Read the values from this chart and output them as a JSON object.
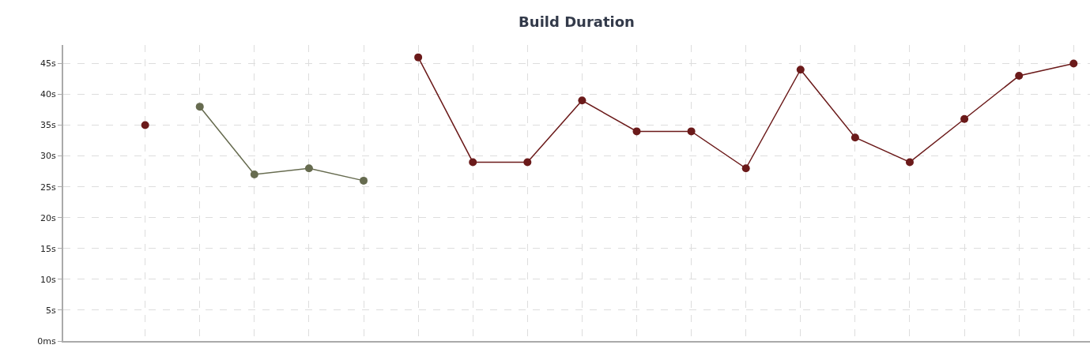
{
  "chart_data": {
    "type": "line",
    "title": "Build Duration",
    "categories": [
      null,
      null,
      null,
      null,
      null,
      null,
      null,
      null,
      null,
      null,
      null,
      null,
      null,
      null,
      null,
      null,
      null,
      null
    ],
    "series": [
      {
        "color": "#6b1a1a",
        "values": [
          null,
          null,
          null,
          null,
          null,
          46,
          29,
          29,
          39,
          34,
          34,
          28,
          44,
          33,
          29,
          36,
          43,
          45
        ]
      },
      {
        "color": "#666b4f",
        "values": [
          null,
          38,
          27,
          28,
          26,
          null,
          null,
          null,
          null,
          null,
          null,
          null,
          null,
          null,
          null,
          null,
          null,
          null
        ]
      },
      {
        "type": "scatter",
        "color": "#6b1a1a",
        "values": [
          35,
          null,
          null,
          null,
          null,
          null,
          null,
          null,
          null,
          null,
          null,
          null,
          null,
          null,
          null,
          null,
          null,
          null
        ]
      }
    ],
    "ylim": [
      0,
      48
    ],
    "yticks": [
      {
        "value": 0,
        "label": "0ms"
      },
      {
        "value": 5,
        "label": "5s"
      },
      {
        "value": 10,
        "label": "10s"
      },
      {
        "value": 15,
        "label": "15s"
      },
      {
        "value": 20,
        "label": "20s"
      },
      {
        "value": 25,
        "label": "25s"
      },
      {
        "value": 30,
        "label": "30s"
      },
      {
        "value": 35,
        "label": "35s"
      },
      {
        "value": 40,
        "label": "40s"
      },
      {
        "value": 45,
        "label": "45s"
      }
    ],
    "tick_labels": "y",
    "grid": true,
    "marker": "circle",
    "line_style": "solid",
    "legend": false
  }
}
